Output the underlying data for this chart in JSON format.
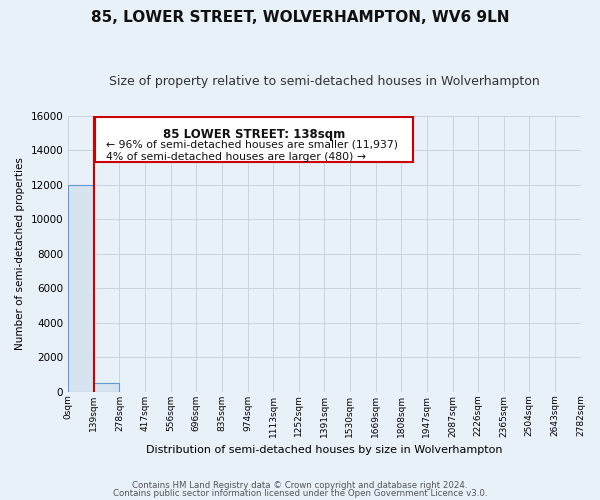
{
  "title": "85, LOWER STREET, WOLVERHAMPTON, WV6 9LN",
  "subtitle": "Size of property relative to semi-detached houses in Wolverhampton",
  "xlabel": "Distribution of semi-detached houses by size in Wolverhampton",
  "ylabel": "Number of semi-detached properties",
  "bar_edges": [
    0,
    139,
    278,
    417,
    556,
    696,
    835,
    974,
    1113,
    1252,
    1391,
    1530,
    1669,
    1808,
    1947,
    2087,
    2226,
    2365,
    2504,
    2643,
    2782
  ],
  "bar_heights": [
    12000,
    500,
    0,
    0,
    0,
    0,
    0,
    0,
    0,
    0,
    0,
    0,
    0,
    0,
    0,
    0,
    0,
    0,
    0,
    0
  ],
  "bar_color": "#d6e4f0",
  "bar_edgecolor": "#5b9bd5",
  "property_line_x": 138,
  "property_line_color": "#cc0000",
  "ylim": [
    0,
    16000
  ],
  "yticks": [
    0,
    2000,
    4000,
    6000,
    8000,
    10000,
    12000,
    14000,
    16000
  ],
  "xtick_labels": [
    "0sqm",
    "139sqm",
    "278sqm",
    "417sqm",
    "556sqm",
    "696sqm",
    "835sqm",
    "974sqm",
    "1113sqm",
    "1252sqm",
    "1391sqm",
    "1530sqm",
    "1669sqm",
    "1808sqm",
    "1947sqm",
    "2087sqm",
    "2226sqm",
    "2365sqm",
    "2504sqm",
    "2643sqm",
    "2782sqm"
  ],
  "annotation_line1": "85 LOWER STREET: 138sqm",
  "annotation_line2": "← 96% of semi-detached houses are smaller (11,937)",
  "annotation_line3": "4% of semi-detached houses are larger (480) →",
  "annotation_box_color": "#ffffff",
  "annotation_box_edgecolor": "#cc0000",
  "footer_line1": "Contains HM Land Registry data © Crown copyright and database right 2024.",
  "footer_line2": "Contains public sector information licensed under the Open Government Licence v3.0.",
  "background_color": "#e8f0f8",
  "grid_color": "#c8d4e0",
  "title_fontsize": 11,
  "subtitle_fontsize": 9
}
